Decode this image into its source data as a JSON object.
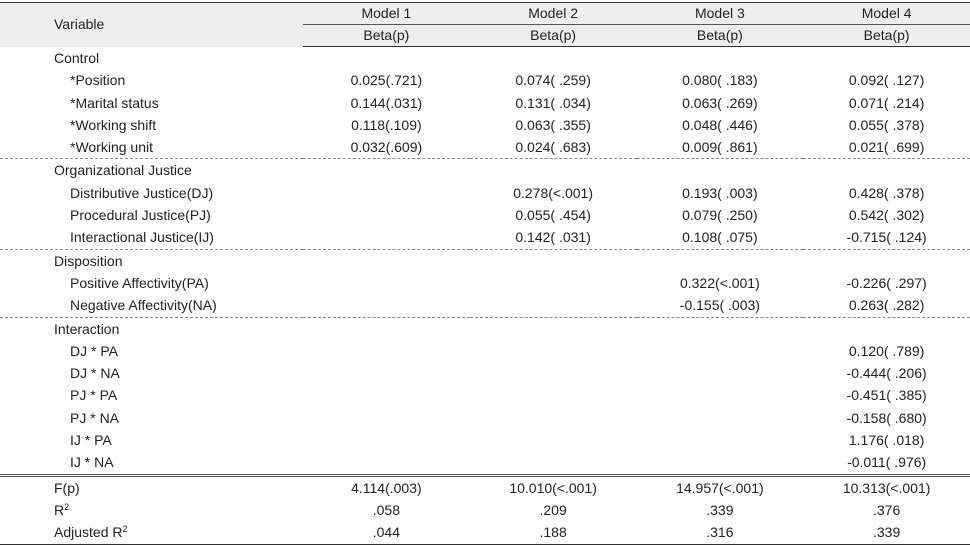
{
  "header": {
    "variable": "Variable",
    "models": [
      "Model  1",
      "Model  2",
      "Model  3",
      "Model  4"
    ],
    "sub": "Beta(p)"
  },
  "sections": [
    {
      "title": "Control",
      "rows": [
        {
          "label": "*Position",
          "values": [
            "0.025(.721)",
            "0.074( .259)",
            "0.080( .183)",
            "0.092( .127)"
          ]
        },
        {
          "label": "*Marital status",
          "values": [
            "0.144(.031)",
            "0.131( .034)",
            "0.063( .269)",
            "0.071( .214)"
          ]
        },
        {
          "label": "*Working shift",
          "values": [
            "0.118(.109)",
            "0.063( .355)",
            "0.048( .446)",
            "0.055( .378)"
          ]
        },
        {
          "label": "*Working  unit",
          "values": [
            "0.032(.609)",
            "0.024( .683)",
            "0.009( .861)",
            "0.021( .699)"
          ]
        }
      ]
    },
    {
      "title": "Organizational  Justice",
      "rows": [
        {
          "label": "Distributive  Justice(DJ)",
          "values": [
            "",
            "0.278(<.001)",
            "0.193( .003)",
            "0.428( .378)"
          ]
        },
        {
          "label": "Procedural  Justice(PJ)",
          "values": [
            "",
            "0.055( .454)",
            "0.079( .250)",
            "0.542( .302)"
          ]
        },
        {
          "label": "Interactional  Justice(IJ)",
          "values": [
            "",
            "0.142( .031)",
            "0.108( .075)",
            "-0.715( .124)"
          ]
        }
      ]
    },
    {
      "title": "Disposition",
      "rows": [
        {
          "label": "Positive  Affectivity(PA)",
          "values": [
            "",
            "",
            "0.322(<.001)",
            "-0.226( .297)"
          ]
        },
        {
          "label": "Negative  Affectivity(NA)",
          "values": [
            "",
            "",
            "-0.155( .003)",
            "0.263( .282)"
          ]
        }
      ]
    },
    {
      "title": "Interaction",
      "rows": [
        {
          "label": "DJ  *  PA",
          "values": [
            "",
            "",
            "",
            "0.120( .789)"
          ]
        },
        {
          "label": "DJ  *  NA",
          "values": [
            "",
            "",
            "",
            "-0.444( .206)"
          ]
        },
        {
          "label": "PJ  *  PA",
          "values": [
            "",
            "",
            "",
            "-0.451( .385)"
          ]
        },
        {
          "label": "PJ  *  NA",
          "values": [
            "",
            "",
            "",
            "-0.158( .680)"
          ]
        },
        {
          "label": "IJ  *  PA",
          "values": [
            "",
            "",
            "",
            "1.176( .018)"
          ]
        },
        {
          "label": "IJ  *  NA",
          "values": [
            "",
            "",
            "",
            "-0.011( .976)"
          ]
        }
      ]
    }
  ],
  "stats": [
    {
      "label": "F(p)",
      "sup": "",
      "values": [
        "4.114(.003)",
        "10.010(<.001)",
        "14.957(<.001)",
        "10.313(<.001)"
      ]
    },
    {
      "label": "R",
      "sup": "2",
      "values": [
        ".058",
        ".209",
        ".339",
        ".376"
      ]
    },
    {
      "label": "Adjusted  R",
      "sup": "2",
      "values": [
        ".044",
        ".188",
        ".316",
        ".339"
      ]
    }
  ]
}
